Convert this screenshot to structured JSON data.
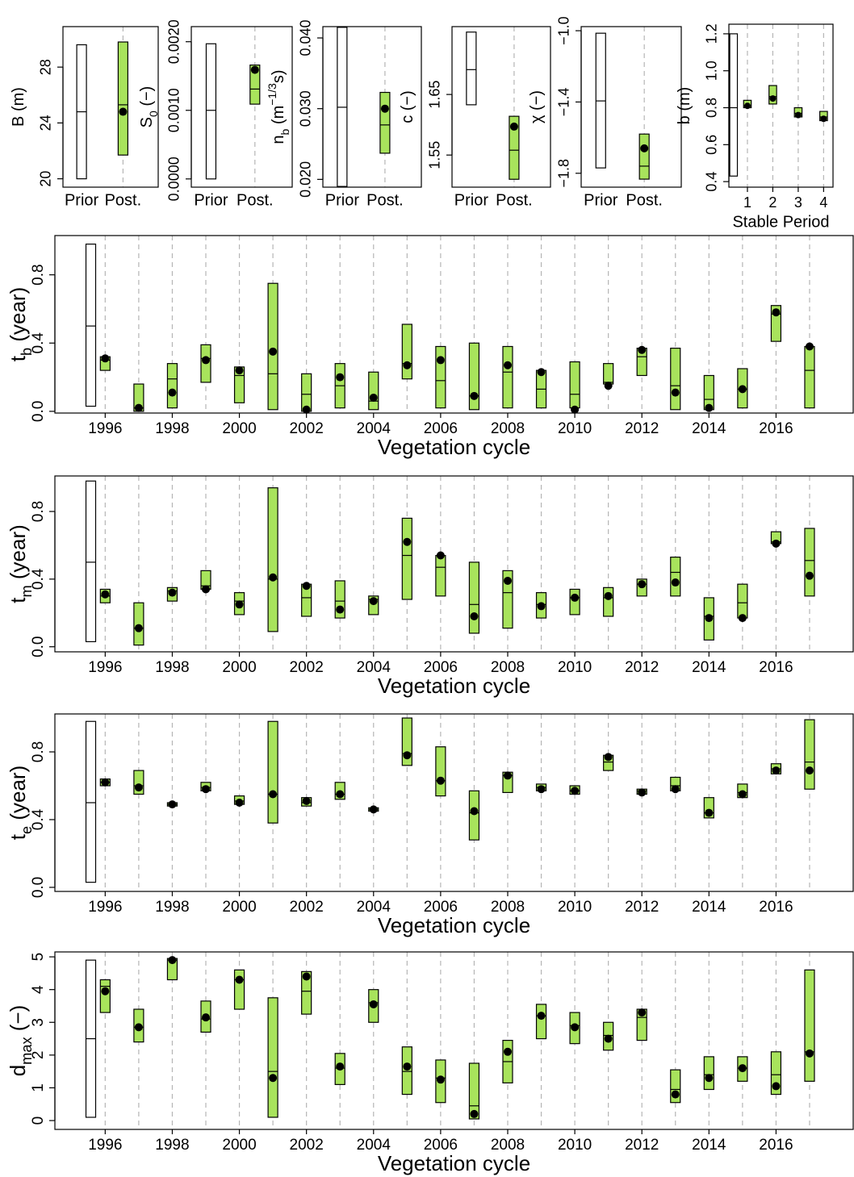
{
  "chart_data": [
    {
      "type": "box",
      "ylabel": [
        {
          "text": "B (m)"
        }
      ],
      "prior": {
        "label": "Prior",
        "low": 20,
        "high": 29.6,
        "median": 24.8
      },
      "categories": [
        "Post."
      ],
      "low": [
        21.7
      ],
      "high": [
        29.8
      ],
      "median": [
        25.3
      ],
      "point": [
        24.8
      ],
      "ylim": [
        19.4,
        30.9
      ],
      "yticks": [
        20,
        24,
        28
      ],
      "prior_color": "#ffffff",
      "color": "#a8e35c",
      "point_color": "#000000",
      "grid": true
    },
    {
      "type": "box",
      "ylabel": [
        {
          "text": "S"
        },
        {
          "text": "0",
          "style": "sub"
        },
        {
          "text": " (−)"
        }
      ],
      "prior": {
        "label": "Prior",
        "low": 0,
        "high": 0.00197,
        "median": 0.001
      },
      "categories": [
        "Post."
      ],
      "low": [
        0.00109
      ],
      "high": [
        0.00166
      ],
      "median": [
        0.00131
      ],
      "point": [
        0.00159
      ],
      "ylim": [
        -0.00012,
        0.00222
      ],
      "yticks": [
        {
          "value": 0,
          "label": "0.0000"
        },
        {
          "value": 0.001,
          "label": "0.0010"
        },
        {
          "value": 0.002,
          "label": "0.0020"
        }
      ],
      "prior_color": "#ffffff",
      "color": "#a8e35c",
      "point_color": "#000000",
      "grid": true
    },
    {
      "type": "box",
      "ylabel": [
        {
          "text": "n"
        },
        {
          "text": "b",
          "style": "sub"
        },
        {
          "text": " (m"
        },
        {
          "text": "−1/3",
          "style": "sup"
        },
        {
          "text": "s)"
        }
      ],
      "prior": {
        "label": "Prior",
        "low": 0.019,
        "high": 0.0415,
        "median": 0.0302
      },
      "categories": [
        "Post."
      ],
      "low": [
        0.0237
      ],
      "high": [
        0.0323
      ],
      "median": [
        0.0277
      ],
      "point": [
        0.03
      ],
      "ylim": [
        0.0189,
        0.0416
      ],
      "yticks": [
        {
          "value": 0.02,
          "label": "0.020"
        },
        {
          "value": 0.03,
          "label": "0.030"
        },
        {
          "value": 0.04,
          "label": "0.040"
        }
      ],
      "prior_color": "#ffffff",
      "color": "#a8e35c",
      "point_color": "#000000",
      "grid": true
    },
    {
      "type": "box",
      "ylabel": [
        {
          "text": "c (−)"
        }
      ],
      "prior": {
        "label": "Prior",
        "low": 1.633,
        "high": 1.753,
        "median": 1.691
      },
      "categories": [
        "Post."
      ],
      "low": [
        1.51
      ],
      "high": [
        1.614
      ],
      "median": [
        1.558
      ],
      "point": [
        1.597
      ],
      "ylim": [
        1.497,
        1.762
      ],
      "yticks": [
        1.55,
        1.65
      ],
      "prior_color": "#ffffff",
      "color": "#a8e35c",
      "point_color": "#000000",
      "grid": true
    },
    {
      "type": "box",
      "ylabel": [
        {
          "text": "χ (−)"
        }
      ],
      "prior": {
        "label": "Prior",
        "low": -1.77,
        "high": -1.014,
        "median": -1.394
      },
      "categories": [
        "Post."
      ],
      "low": [
        -1.833
      ],
      "high": [
        -1.58
      ],
      "median": [
        -1.76
      ],
      "point": [
        -1.66
      ],
      "ylim": [
        -1.878,
        -0.977
      ],
      "yticks": [
        {
          "value": -1.8,
          "label": "−1.8"
        },
        {
          "value": -1.4,
          "label": "−1.4"
        },
        {
          "value": -1.0,
          "label": "−1.0"
        }
      ],
      "prior_color": "#ffffff",
      "color": "#a8e35c",
      "point_color": "#000000",
      "grid": true
    },
    {
      "type": "box",
      "ylabel": [
        {
          "text": "b (m)"
        }
      ],
      "xlabel": "Stable Period",
      "prior": {
        "low": 0.43,
        "high": 1.2,
        "median": 0.8
      },
      "x": [
        1,
        2,
        3,
        4
      ],
      "low": [
        0.8,
        0.82,
        0.75,
        0.73
      ],
      "high": [
        0.84,
        0.92,
        0.8,
        0.78
      ],
      "median": [
        0.81,
        0.86,
        0.77,
        0.75
      ],
      "point": [
        0.81,
        0.85,
        0.76,
        0.74
      ],
      "xlim": [
        0.27,
        4.37
      ],
      "xticks": [
        1,
        2,
        3,
        4
      ],
      "ylim": [
        0.37,
        1.252
      ],
      "yticks": [
        0.4,
        0.6,
        0.8,
        {
          "value": 1.0,
          "label": "1.0"
        },
        1.2
      ],
      "prior_color": "#ffffff",
      "color": "#a8e35c",
      "point_color": "#000000",
      "grid": true
    },
    {
      "type": "box",
      "ylabel": [
        {
          "text": "t"
        },
        {
          "text": "b",
          "style": "sub"
        },
        {
          "text": " (year)"
        }
      ],
      "xlabel": "Vegetation cycle",
      "prior": {
        "low": 0.03,
        "high": 0.98,
        "median": 0.5
      },
      "x": [
        1996,
        1997,
        1998,
        1999,
        2000,
        2001,
        2002,
        2003,
        2004,
        2005,
        2006,
        2007,
        2008,
        2009,
        2010,
        2011,
        2012,
        2013,
        2014,
        2015,
        2016,
        2017
      ],
      "low": [
        0.24,
        0.0,
        0.02,
        0.17,
        0.05,
        0.01,
        0.0,
        0.02,
        0.01,
        0.19,
        0.02,
        0.01,
        0.02,
        0.02,
        0.02,
        0.16,
        0.21,
        0.01,
        0.01,
        0.02,
        0.41,
        0.02
      ],
      "high": [
        0.32,
        0.16,
        0.28,
        0.39,
        0.26,
        0.75,
        0.22,
        0.28,
        0.23,
        0.51,
        0.38,
        0.4,
        0.38,
        0.24,
        0.29,
        0.28,
        0.37,
        0.37,
        0.21,
        0.25,
        0.62,
        0.38
      ],
      "median": [
        0.3,
        0.02,
        0.19,
        0.31,
        0.21,
        0.22,
        0.1,
        0.15,
        0.06,
        0.28,
        0.18,
        0.09,
        0.23,
        0.13,
        0.1,
        0.17,
        0.32,
        0.15,
        0.07,
        0.13,
        0.57,
        0.24
      ],
      "point": [
        0.31,
        0.02,
        0.11,
        0.3,
        0.24,
        0.35,
        0.01,
        0.2,
        0.08,
        0.27,
        0.3,
        0.09,
        0.27,
        0.23,
        0.01,
        0.15,
        0.36,
        0.11,
        0.02,
        0.13,
        0.58,
        0.38
      ],
      "xlim": [
        1994.5,
        2018.3
      ],
      "xticks": [
        1996,
        1998,
        2000,
        2002,
        2004,
        2006,
        2008,
        2010,
        2012,
        2014,
        2016
      ],
      "ylim": [
        -0.01,
        1.03
      ],
      "yticks": [
        {
          "value": 0,
          "label": "0.0"
        },
        0.4,
        0.8
      ],
      "prior_color": "#ffffff",
      "color": "#a8e35c",
      "point_color": "#000000",
      "grid": true
    },
    {
      "type": "box",
      "ylabel": [
        {
          "text": "t"
        },
        {
          "text": "m",
          "style": "sub"
        },
        {
          "text": " (year)"
        }
      ],
      "xlabel": "Vegetation cycle",
      "prior": {
        "low": 0.03,
        "high": 0.98,
        "median": 0.5
      },
      "x": [
        1996,
        1997,
        1998,
        1999,
        2000,
        2001,
        2002,
        2003,
        2004,
        2005,
        2006,
        2007,
        2008,
        2009,
        2010,
        2011,
        2012,
        2013,
        2014,
        2015,
        2016,
        2017
      ],
      "low": [
        0.26,
        0.01,
        0.27,
        0.34,
        0.19,
        0.09,
        0.18,
        0.17,
        0.19,
        0.28,
        0.3,
        0.08,
        0.11,
        0.17,
        0.19,
        0.18,
        0.3,
        0.3,
        0.04,
        0.17,
        0.61,
        0.3
      ],
      "high": [
        0.34,
        0.26,
        0.35,
        0.45,
        0.32,
        0.94,
        0.37,
        0.39,
        0.3,
        0.76,
        0.54,
        0.5,
        0.45,
        0.32,
        0.34,
        0.35,
        0.4,
        0.53,
        0.29,
        0.37,
        0.68,
        0.7
      ],
      "median": [
        0.3,
        0.11,
        0.33,
        0.36,
        0.27,
        0.4,
        0.29,
        0.27,
        0.28,
        0.54,
        0.47,
        0.25,
        0.32,
        0.25,
        0.29,
        0.29,
        0.37,
        0.44,
        0.18,
        0.26,
        0.62,
        0.51
      ],
      "point": [
        0.31,
        0.11,
        0.32,
        0.34,
        0.25,
        0.41,
        0.36,
        0.22,
        0.27,
        0.62,
        0.54,
        0.18,
        0.39,
        0.24,
        0.29,
        0.3,
        0.37,
        0.38,
        0.17,
        0.17,
        0.61,
        0.42
      ],
      "xlim": [
        1994.5,
        2018.3
      ],
      "xticks": [
        1996,
        1998,
        2000,
        2002,
        2004,
        2006,
        2008,
        2010,
        2012,
        2014,
        2016
      ],
      "ylim": [
        -0.03,
        1.01
      ],
      "yticks": [
        {
          "value": 0,
          "label": "0.0"
        },
        0.4,
        0.8
      ],
      "prior_color": "#ffffff",
      "color": "#a8e35c",
      "point_color": "#000000",
      "grid": true
    },
    {
      "type": "box",
      "ylabel": [
        {
          "text": "t"
        },
        {
          "text": "e",
          "style": "sub"
        },
        {
          "text": " (year)"
        }
      ],
      "xlabel": "Vegetation cycle",
      "prior": {
        "low": 0.03,
        "high": 0.98,
        "median": 0.5
      },
      "x": [
        1996,
        1997,
        1998,
        1999,
        2000,
        2001,
        2002,
        2003,
        2004,
        2005,
        2006,
        2007,
        2008,
        2009,
        2010,
        2011,
        2012,
        2013,
        2014,
        2015,
        2016,
        2017
      ],
      "low": [
        0.6,
        0.55,
        0.48,
        0.57,
        0.49,
        0.38,
        0.48,
        0.52,
        0.45,
        0.72,
        0.54,
        0.28,
        0.56,
        0.57,
        0.55,
        0.69,
        0.55,
        0.57,
        0.41,
        0.53,
        0.67,
        0.58
      ],
      "high": [
        0.64,
        0.69,
        0.5,
        0.62,
        0.54,
        0.98,
        0.53,
        0.62,
        0.47,
        1.0,
        0.83,
        0.57,
        0.68,
        0.61,
        0.6,
        0.78,
        0.58,
        0.65,
        0.53,
        0.61,
        0.73,
        0.99
      ],
      "median": [
        0.62,
        0.6,
        0.49,
        0.59,
        0.51,
        0.55,
        0.5,
        0.55,
        0.46,
        0.79,
        0.63,
        0.44,
        0.66,
        0.59,
        0.57,
        0.74,
        0.57,
        0.6,
        0.44,
        0.56,
        0.7,
        0.74
      ],
      "point": [
        0.62,
        0.59,
        0.49,
        0.58,
        0.5,
        0.55,
        0.51,
        0.55,
        0.46,
        0.78,
        0.63,
        0.45,
        0.66,
        0.58,
        0.57,
        0.77,
        0.56,
        0.58,
        0.44,
        0.55,
        0.69,
        0.69
      ],
      "xlim": [
        1994.5,
        2018.3
      ],
      "xticks": [
        1996,
        1998,
        2000,
        2002,
        2004,
        2006,
        2008,
        2010,
        2012,
        2014,
        2016
      ],
      "ylim": [
        -0.024,
        1.024
      ],
      "yticks": [
        {
          "value": 0,
          "label": "0.0"
        },
        0.4,
        0.8
      ],
      "prior_color": "#ffffff",
      "color": "#a8e35c",
      "point_color": "#000000",
      "grid": true
    },
    {
      "type": "box",
      "ylabel": [
        {
          "text": "d"
        },
        {
          "text": "max",
          "style": "sub"
        },
        {
          "text": " (−)"
        }
      ],
      "xlabel": "Vegetation cycle",
      "prior": {
        "low": 0.1,
        "high": 4.9,
        "median": 2.5
      },
      "x": [
        1996,
        1997,
        1998,
        1999,
        2000,
        2001,
        2002,
        2003,
        2004,
        2005,
        2006,
        2007,
        2008,
        2009,
        2010,
        2011,
        2012,
        2013,
        2014,
        2015,
        2016,
        2017
      ],
      "low": [
        3.3,
        2.4,
        4.3,
        2.7,
        3.4,
        0.1,
        3.25,
        1.1,
        3.0,
        0.8,
        0.55,
        0.05,
        1.15,
        2.5,
        2.35,
        2.15,
        2.45,
        0.55,
        0.95,
        1.2,
        0.8,
        1.2
      ],
      "high": [
        4.3,
        3.4,
        4.95,
        3.65,
        4.6,
        3.75,
        4.55,
        2.05,
        4.0,
        2.25,
        1.85,
        1.75,
        2.45,
        3.55,
        3.3,
        3.0,
        3.4,
        1.55,
        1.95,
        1.95,
        2.1,
        4.6
      ],
      "median": [
        4.1,
        2.85,
        4.9,
        3.1,
        4.3,
        1.5,
        3.95,
        1.6,
        3.6,
        1.5,
        1.3,
        0.45,
        1.8,
        3.2,
        2.9,
        2.6,
        3.15,
        0.95,
        1.4,
        1.6,
        1.4,
        2.1
      ],
      "point": [
        3.95,
        2.85,
        4.9,
        3.15,
        4.3,
        1.3,
        4.4,
        1.65,
        3.55,
        1.65,
        1.25,
        0.2,
        2.1,
        3.2,
        2.85,
        2.5,
        3.3,
        0.8,
        1.3,
        1.6,
        1.05,
        2.05
      ],
      "xlim": [
        1994.5,
        2018.3
      ],
      "xticks": [
        1996,
        1998,
        2000,
        2002,
        2004,
        2006,
        2008,
        2010,
        2012,
        2014,
        2016
      ],
      "ylim": [
        -0.27,
        5.15
      ],
      "yticks": [
        0,
        1,
        2,
        3,
        4,
        5
      ],
      "prior_color": "#ffffff",
      "color": "#a8e35c",
      "point_color": "#000000",
      "grid": true
    }
  ]
}
